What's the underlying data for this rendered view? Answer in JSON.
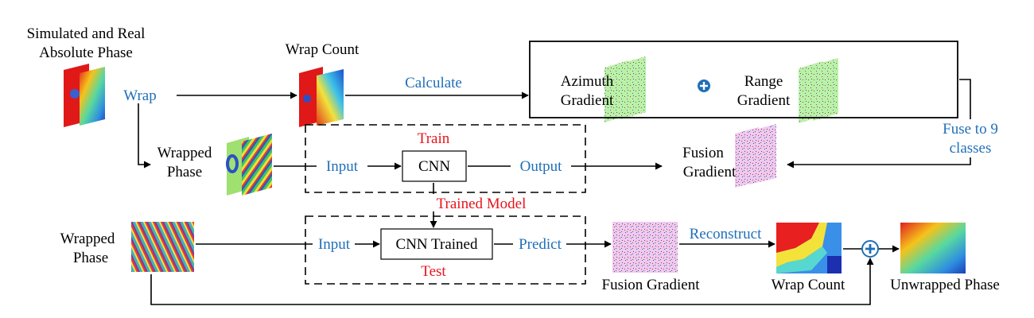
{
  "labels": {
    "sim_real_line1": "Simulated and Real",
    "sim_real_line2": "Absolute Phase",
    "wrap": "Wrap",
    "wrap_count_top": "Wrap Count",
    "calculate": "Calculate",
    "azimuth": "Azimuth",
    "azimuth_gradient": "Gradient",
    "range": "Range",
    "range_gradient": "Gradient",
    "fuse_line1": "Fuse to 9",
    "fuse_line2": "classes",
    "wrapped_phase_1a": "Wrapped",
    "wrapped_phase_1b": "Phase",
    "train": "Train",
    "input_1": "Input",
    "cnn": "CNN",
    "output": "Output",
    "fusion_1": "Fusion",
    "fusion_gradient_1": "Gradient",
    "trained_model": "Trained Model",
    "wrapped_phase_2a": "Wrapped",
    "wrapped_phase_2b": "Phase",
    "input_2": "Input",
    "cnn_trained": "CNN Trained",
    "predict": "Predict",
    "test": "Test",
    "reconstruct": "Reconstruct",
    "fusion_gradient_2": "Fusion Gradient",
    "wrap_count_bottom": "Wrap Count",
    "unwrapped_phase": "Unwrapped Phase"
  },
  "colors": {
    "black_text": "#000000",
    "blue_text": "#1f6fb8",
    "red_text": "#e8141b",
    "plus_circle": "#1f6fb8"
  }
}
